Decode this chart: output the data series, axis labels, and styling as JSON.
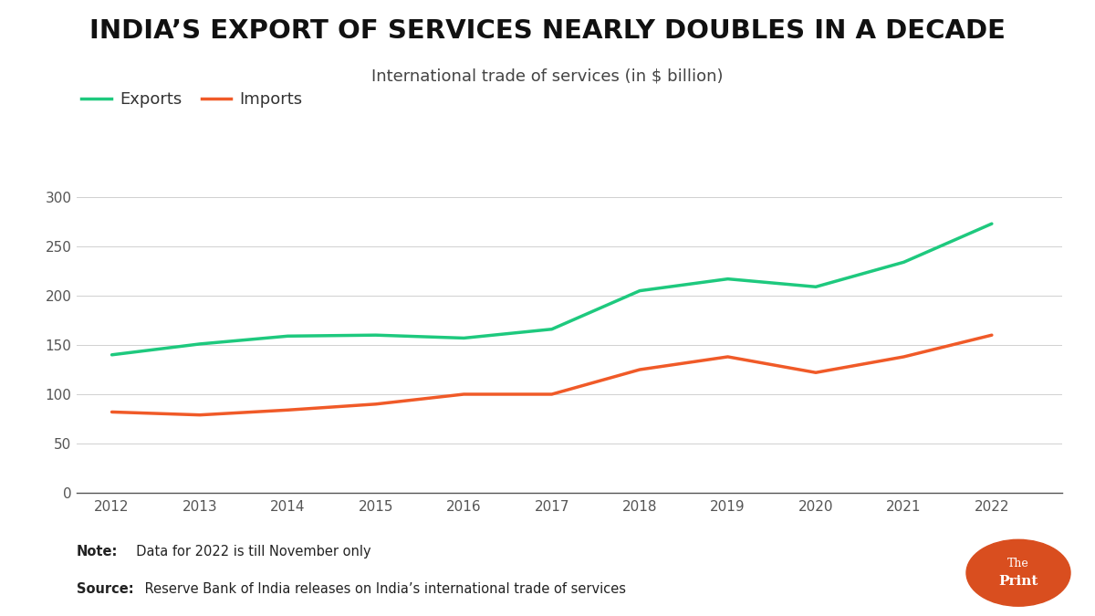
{
  "title": "INDIA’S EXPORT OF SERVICES NEARLY DOUBLES IN A DECADE",
  "subtitle": "International trade of services (in $ billion)",
  "years": [
    2012,
    2013,
    2014,
    2015,
    2016,
    2017,
    2018,
    2019,
    2020,
    2021,
    2022
  ],
  "exports": [
    140,
    151,
    159,
    160,
    157,
    166,
    205,
    217,
    209,
    234,
    273
  ],
  "imports": [
    82,
    79,
    84,
    90,
    100,
    100,
    125,
    138,
    122,
    138,
    160
  ],
  "export_color": "#1ec97e",
  "import_color": "#f05a28",
  "ylim": [
    0,
    325
  ],
  "yticks": [
    0,
    50,
    100,
    150,
    200,
    250,
    300
  ],
  "note_bold": "Note:",
  "note_text": "  Data for 2022 is till November only",
  "source_bold": "Source:",
  "source_text": " Reserve Bank of India releases on India’s international trade of services",
  "bg_color": "#ffffff",
  "plot_bg_color": "#f5f5f5",
  "line_width": 2.5,
  "title_fontsize": 21,
  "subtitle_fontsize": 13,
  "tick_fontsize": 11,
  "legend_fontsize": 13,
  "note_fontsize": 10.5,
  "logo_color": "#d94e1f",
  "grid_color": "#d0d0d0",
  "xlim_left": 2011.6,
  "xlim_right": 2022.8
}
